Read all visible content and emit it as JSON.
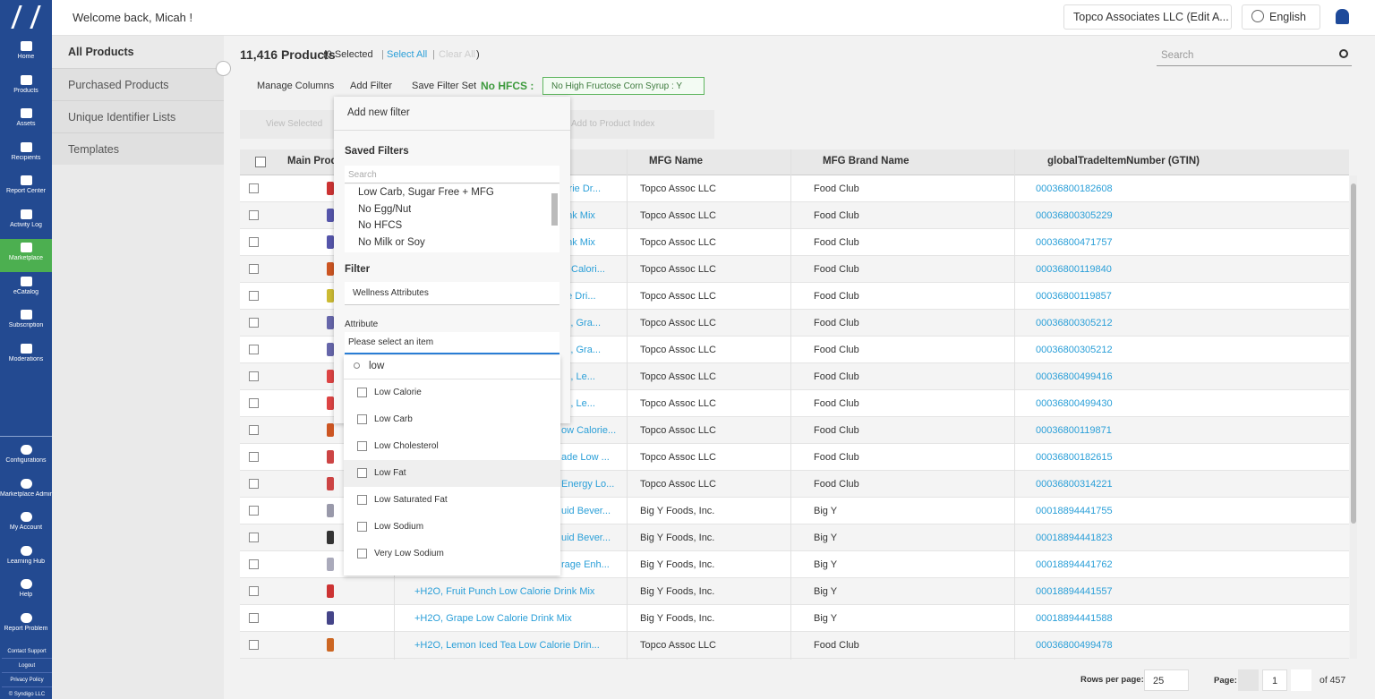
{
  "sidebar": {
    "items": [
      "Home",
      "Products",
      "Assets",
      "Recipients",
      "Report Center",
      "Activity Log",
      "Marketplace",
      "eCatalog",
      "Subscription",
      "Moderations"
    ],
    "bottom_items": [
      "Configurations",
      "Marketplace Admin",
      "My Account",
      "Learning Hub",
      "Help",
      "Report Problem"
    ],
    "footer_links": [
      "Contact Support",
      "Logout",
      "Privacy Policy",
      "© Syndigo LLC"
    ]
  },
  "header": {
    "welcome": "Welcome back, Micah !",
    "company": "Topco Associates LLC (Edit A...",
    "language": "English"
  },
  "subnav": [
    "All Products",
    "Purchased Products",
    "Unique Identifier Lists",
    "Templates"
  ],
  "summary": {
    "count": "11,416 Products",
    "selected": "(0 Selected",
    "separator": "|",
    "select_all": "Select All",
    "clear_all": "Clear All",
    "close": ")"
  },
  "search_placeholder": "Search",
  "toolbar": {
    "manage_columns": "Manage Columns",
    "add_filter": "Add Filter",
    "save_filter_set": "Save Filter Set",
    "filter_set_name": "No HFCS :",
    "active_filter": "No High Fructose Corn Syrup : Y"
  },
  "actions": [
    "View Selected",
    "Add to Product Index"
  ],
  "filter_panel": {
    "title": "Add new filter",
    "saved_filters_label": "Saved Filters",
    "search_placeholder": "Search",
    "saved_filters": [
      "Low Carb, Sugar Free + MFG",
      "No Egg/Nut",
      "No HFCS",
      "No Milk or Soy"
    ],
    "filter_label": "Filter",
    "filter_value": "Wellness Attributes",
    "attribute_label": "Attribute",
    "attribute_placeholder": "Please select an item",
    "attribute_search": "low",
    "options": [
      "Low Calorie",
      "Low Carb",
      "Low Cholesterol",
      "Low Fat",
      "Low Saturated Fat",
      "Low Sodium",
      "Very Low Sodium"
    ]
  },
  "table": {
    "columns": [
      "Main Product",
      "MFG Name",
      "MFG Brand Name",
      "globalTradeItemNumber (GTIN)"
    ],
    "rows": [
      [
        "lorie Dr...",
        "Topco Assoc LLC",
        "Food Club",
        "00036800182608"
      ],
      [
        "rink Mix",
        "Topco Assoc LLC",
        "Food Club",
        "00036800305229"
      ],
      [
        "rink Mix",
        "Topco Assoc LLC",
        "Food Club",
        "00036800471757"
      ],
      [
        "w Calori...",
        "Topco Assoc LLC",
        "Food Club",
        "00036800119840"
      ],
      [
        "rie Dri...",
        "Topco Assoc LLC",
        "Food Club",
        "00036800119857"
      ],
      [
        "lix, Gra...",
        "Topco Assoc LLC",
        "Food Club",
        "00036800305212"
      ],
      [
        "lix, Gra...",
        "Topco Assoc LLC",
        "Food Club",
        "00036800305212"
      ],
      [
        "lix, Le...",
        "Topco Assoc LLC",
        "Food Club",
        "00036800499416"
      ],
      [
        "lix, Le...",
        "Topco Assoc LLC",
        "Food Club",
        "00036800499430"
      ],
      [
        "ow Calorie...",
        "Topco Assoc LLC",
        "Food Club",
        "00036800119871"
      ],
      [
        "ade Low ...",
        "Topco Assoc LLC",
        "Food Club",
        "00036800182615"
      ],
      [
        "Energy Lo...",
        "Topco Assoc LLC",
        "Food Club",
        "00036800314221"
      ],
      [
        "uid Bever...",
        "Big Y Foods, Inc.",
        "Big Y",
        "00018894441755"
      ],
      [
        "uid Bever...",
        "Big Y Foods, Inc.",
        "Big Y",
        "00018894441823"
      ],
      [
        "rage Enh...",
        "Big Y Foods, Inc.",
        "Big Y",
        "00018894441762"
      ],
      [
        "+H2O, Fruit Punch Low Calorie Drink Mix",
        "Big Y Foods, Inc.",
        "Big Y",
        "00018894441557"
      ],
      [
        "+H2O, Grape Low Calorie Drink Mix",
        "Big Y Foods, Inc.",
        "Big Y",
        "00018894441588"
      ],
      [
        "+H2O, Lemon Iced Tea Low Calorie Drin...",
        "Topco Assoc LLC",
        "Food Club",
        "00036800499478"
      ]
    ]
  },
  "pagination": {
    "rows_per_page_label": "Rows per page:",
    "rows_per_page": "25",
    "page_label": "Page:",
    "page": "1",
    "of": "of 457"
  }
}
